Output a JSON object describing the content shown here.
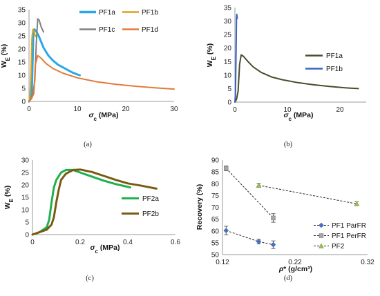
{
  "chart_data": [
    {
      "panel": "(a)",
      "type": "line",
      "xlabel": "σc (MPa)",
      "ylabel": "WE (%)",
      "xlim": [
        0,
        30
      ],
      "ylim": [
        0,
        35
      ],
      "xticks": [
        "0",
        "10",
        "20",
        "30"
      ],
      "yticks": [
        "0",
        "5",
        "10",
        "15",
        "20",
        "25",
        "30",
        "35"
      ],
      "legend_placement": "top-right",
      "legend_cols": 2,
      "series": [
        {
          "name": "PF1a",
          "color": "#2aa7e6",
          "width": 3,
          "x": [
            0,
            0.3,
            0.6,
            0.9,
            1.1,
            1.4,
            2,
            3,
            4,
            5,
            6,
            7,
            8,
            9,
            10,
            10.5
          ],
          "y": [
            0,
            1,
            5,
            26,
            27.5,
            27,
            25,
            20.5,
            17.5,
            15.5,
            14,
            13,
            12,
            11,
            10.3,
            10
          ]
        },
        {
          "name": "PF1b",
          "color": "#d9a21a",
          "width": 2,
          "x": [
            0,
            0.2,
            0.4,
            0.6,
            0.8,
            1.0,
            1.2,
            1.5
          ],
          "y": [
            0,
            2,
            10,
            24,
            27.5,
            27,
            25.5,
            24.5
          ]
        },
        {
          "name": "PF1c",
          "color": "#7f7f7f",
          "width": 2,
          "x": [
            0,
            0.4,
            0.8,
            1.2,
            1.5,
            1.8,
            2.1,
            2.5,
            3.0
          ],
          "y": [
            0,
            1,
            3,
            8,
            22,
            31.5,
            31,
            28.5,
            26.5
          ]
        },
        {
          "name": "PF1d",
          "color": "#e07b39",
          "width": 2,
          "x": [
            0,
            0.5,
            1.0,
            1.3,
            1.8,
            2.5,
            3.5,
            5,
            7,
            10,
            14,
            18,
            22,
            26,
            30
          ],
          "y": [
            0,
            1,
            3,
            14,
            17.5,
            16.5,
            14.5,
            12.5,
            10.8,
            9,
            7.5,
            6.5,
            5.8,
            5.2,
            4.7
          ]
        }
      ]
    },
    {
      "panel": "(b)",
      "type": "line",
      "xlabel": "σc (MPa)",
      "ylabel": "WE (%)",
      "xlim": [
        0,
        25
      ],
      "ylim": [
        0,
        35
      ],
      "xticks": [
        "0",
        "10",
        "20"
      ],
      "yticks": [
        "0",
        "5",
        "10",
        "15",
        "20",
        "25",
        "30",
        "35"
      ],
      "legend_placement": "right",
      "series": [
        {
          "name": "PF1a",
          "color": "#4b4b2d",
          "width": 2,
          "x": [
            0,
            0.3,
            0.6,
            0.9,
            1.2,
            1.6,
            2.5,
            3.5,
            5,
            7,
            9,
            12,
            15,
            18,
            21,
            23.5
          ],
          "y": [
            0,
            1,
            4,
            14,
            17.5,
            17,
            15,
            13,
            11,
            9.3,
            8.3,
            7.2,
            6.4,
            5.8,
            5.3,
            5
          ]
        },
        {
          "name": "PF1b",
          "color": "#3a62c0",
          "width": 2,
          "x": [
            0,
            0.1,
            0.2,
            0.3,
            0.35,
            0.45
          ],
          "y": [
            0,
            3,
            15,
            31,
            32.5,
            31
          ]
        }
      ]
    },
    {
      "panel": "(c)",
      "type": "line",
      "xlabel": "σc (MPa)",
      "ylabel": "WE (%)",
      "xlim": [
        0,
        0.6
      ],
      "ylim": [
        0,
        30
      ],
      "xticks": [
        "0",
        "0.2",
        "0.4",
        "0.6"
      ],
      "yticks": [
        "0",
        "5",
        "10",
        "15",
        "20",
        "25",
        "30"
      ],
      "legend_placement": "right",
      "series": [
        {
          "name": "PF2a",
          "color": "#1fb04d",
          "width": 3,
          "x": [
            0,
            0.03,
            0.06,
            0.07,
            0.08,
            0.09,
            0.1,
            0.12,
            0.14,
            0.17,
            0.2,
            0.25,
            0.3,
            0.35,
            0.41
          ],
          "y": [
            0,
            1,
            3,
            6,
            13,
            19,
            22,
            25,
            26,
            26,
            25,
            23.3,
            21.7,
            20.3,
            19
          ]
        },
        {
          "name": "PF2b",
          "color": "#7a5a12",
          "width": 3,
          "x": [
            0,
            0.03,
            0.06,
            0.08,
            0.09,
            0.1,
            0.11,
            0.12,
            0.14,
            0.17,
            0.2,
            0.25,
            0.3,
            0.35,
            0.4,
            0.45,
            0.52
          ],
          "y": [
            0,
            1,
            2,
            4,
            7,
            13,
            18,
            22,
            24.5,
            26,
            26.2,
            25.2,
            23.6,
            22,
            20.6,
            19.8,
            18.5
          ]
        }
      ]
    },
    {
      "panel": "(d)",
      "type": "scatter",
      "xlabel": "ρ* (g/cm³)",
      "ylabel": "Recovery (%)",
      "xlim": [
        0.12,
        0.32
      ],
      "ylim": [
        50,
        90
      ],
      "xticks": [
        "0.12",
        "0.22",
        "0.32"
      ],
      "yticks": [
        "50",
        "55",
        "60",
        "65",
        "70",
        "75",
        "80",
        "85",
        "90"
      ],
      "legend_placement": "bottom-right",
      "series": [
        {
          "name": "PF1 ParFR",
          "color": "#4472c4",
          "marker": "diamond",
          "x": [
            0.125,
            0.17,
            0.19
          ],
          "y": [
            60.2,
            55.5,
            54.2
          ],
          "err": [
            1.8,
            1.0,
            1.6
          ]
        },
        {
          "name": "PF1 PerFR",
          "color": "#a5a5a5",
          "marker": "square",
          "x": [
            0.125,
            0.19
          ],
          "y": [
            86.5,
            65.5
          ],
          "err": [
            1.0,
            1.8
          ]
        },
        {
          "name": "PF2",
          "color": "#9bbb59",
          "marker": "triangle",
          "x": [
            0.17,
            0.305
          ],
          "y": [
            79.3,
            71.5
          ],
          "err": [
            0.8,
            0.8
          ]
        }
      ]
    }
  ]
}
